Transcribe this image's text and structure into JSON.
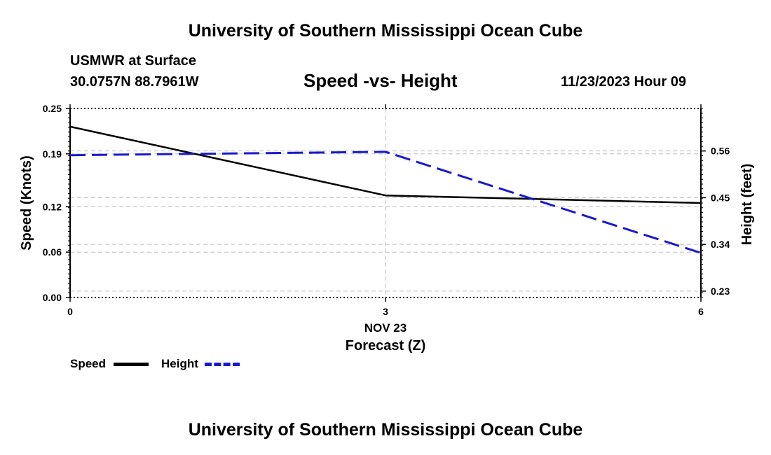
{
  "page": {
    "title": "University of Southern Mississippi Ocean Cube",
    "bottom_title": "University of Southern Mississippi Ocean Cube",
    "station": "USMWR at Surface",
    "coords": "30.0757N  88.7961W",
    "datetime": "11/23/2023 Hour 09"
  },
  "chart_data": {
    "type": "line",
    "title": "Speed -vs- Height",
    "xlabel": "Forecast (Z)",
    "x_date_label": "NOV 23",
    "ylabel_left": "Speed (Knots)",
    "ylabel_right": "Height (feet)",
    "x_ticks": [
      0,
      3,
      6
    ],
    "xlim": [
      0,
      6
    ],
    "y_left_ticks": [
      "0.00",
      "0.06",
      "0.12",
      "0.19",
      "0.25"
    ],
    "y_left_lim": [
      0,
      0.25
    ],
    "y_right_ticks": [
      "0.23",
      "0.34",
      "0.45",
      "0.56"
    ],
    "y_right_lim": [
      0.215,
      0.66
    ],
    "grid": true,
    "series": [
      {
        "name": "Speed",
        "axis": "left",
        "color": "#000000",
        "style": "solid",
        "x": [
          0,
          3,
          6
        ],
        "values": [
          0.226,
          0.135,
          0.125
        ]
      },
      {
        "name": "Height",
        "axis": "right",
        "color": "#1a1acc",
        "style": "dashed",
        "x": [
          0,
          3,
          6
        ],
        "values": [
          0.55,
          0.558,
          0.32
        ]
      }
    ],
    "legend": {
      "placement": "bottom-left",
      "speed_label": "Speed",
      "height_label": "Height"
    }
  }
}
